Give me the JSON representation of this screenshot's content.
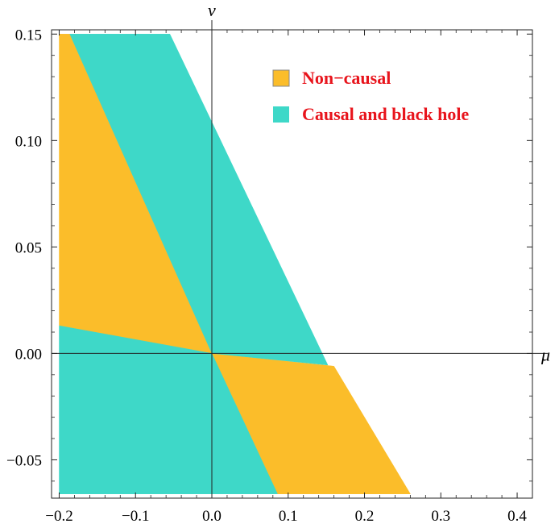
{
  "chart_data": {
    "type": "area",
    "title": "",
    "xlabel": "μ",
    "ylabel": "ν",
    "xlim": [
      -0.21,
      0.42
    ],
    "ylim": [
      -0.068,
      0.152
    ],
    "x_ticks": [
      -0.2,
      -0.1,
      0.0,
      0.1,
      0.2,
      0.3,
      0.4
    ],
    "x_tick_labels": [
      "−0.2",
      "−0.1",
      "0.0",
      "0.1",
      "0.2",
      "0.3",
      "0.4"
    ],
    "y_ticks": [
      -0.05,
      0.0,
      0.05,
      0.1,
      0.15
    ],
    "y_tick_labels": [
      "−0.05",
      "0.00",
      "0.05",
      "0.10",
      "0.15"
    ],
    "grid": false,
    "legend_position": "top-right",
    "series": [
      {
        "name": "Non−causal",
        "color": "#fbbd2a",
        "regions": [
          [
            [
              -0.2,
              0.15
            ],
            [
              -0.186,
              0.15
            ],
            [
              0.0,
              0.0
            ],
            [
              -0.2,
              0.013
            ]
          ],
          [
            [
              0.0,
              0.0
            ],
            [
              0.16,
              -0.006
            ],
            [
              0.26,
              -0.066
            ],
            [
              0.086,
              -0.066
            ]
          ]
        ]
      },
      {
        "name": "Causal and black hole",
        "color": "#3ed8c8",
        "regions": [
          [
            [
              -0.186,
              0.15
            ],
            [
              -0.055,
              0.15
            ],
            [
              0.152,
              -0.0055
            ],
            [
              0.0,
              0.0
            ]
          ],
          [
            [
              -0.2,
              0.013
            ],
            [
              0.0,
              0.0
            ],
            [
              0.086,
              -0.066
            ],
            [
              -0.2,
              -0.066
            ]
          ]
        ]
      }
    ]
  }
}
